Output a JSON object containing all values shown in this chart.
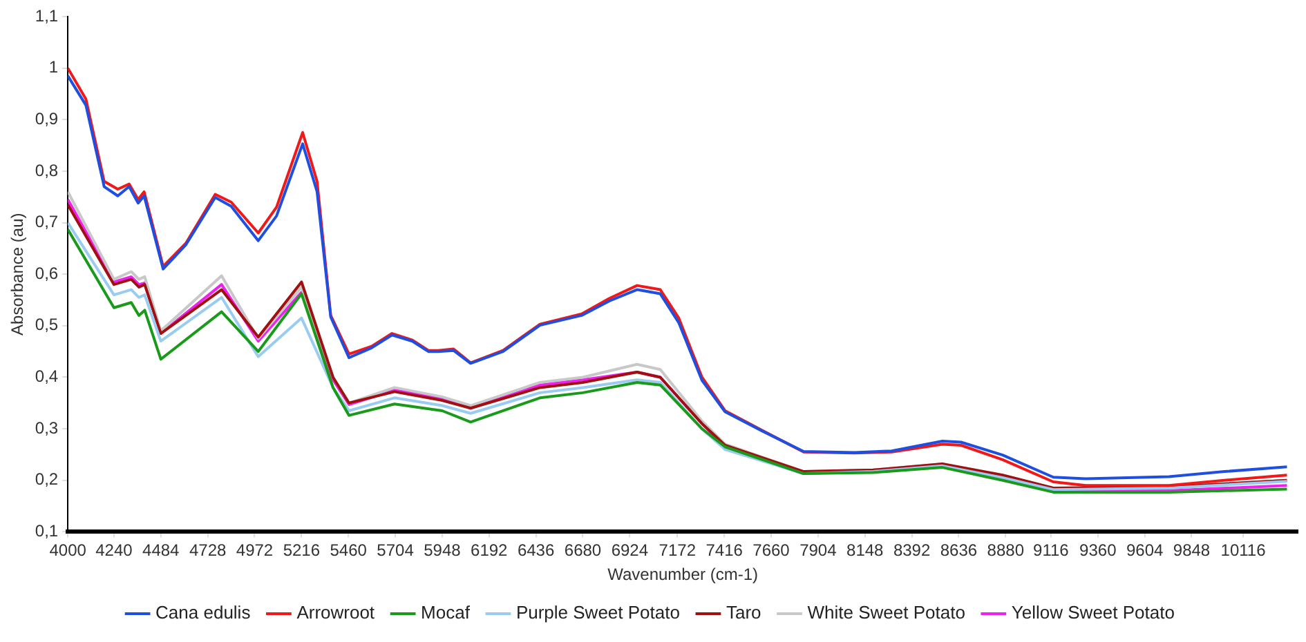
{
  "chart_data": {
    "type": "line",
    "xlabel": "Wavenumber (cm-1)",
    "ylabel": "Absorbance (au)",
    "xlim": [
      4000,
      10400
    ],
    "ylim": [
      0.1,
      1.1
    ],
    "xticks": [
      4000,
      4240,
      4484,
      4728,
      4972,
      5216,
      5460,
      5704,
      5948,
      6192,
      6436,
      6680,
      6924,
      7172,
      7416,
      7660,
      7904,
      8148,
      8392,
      8636,
      8880,
      9116,
      9360,
      9604,
      9848,
      10116
    ],
    "yticks": [
      {
        "value": 0.1,
        "label": "0,1"
      },
      {
        "value": 0.2,
        "label": "0,2"
      },
      {
        "value": 0.3,
        "label": "0,3"
      },
      {
        "value": 0.4,
        "label": "0,4"
      },
      {
        "value": 0.5,
        "label": "0,5"
      },
      {
        "value": 0.6,
        "label": "0,6"
      },
      {
        "value": 0.7,
        "label": "0,7"
      },
      {
        "value": 0.8,
        "label": "0,8"
      },
      {
        "value": 0.9,
        "label": "0,9"
      },
      {
        "value": 1,
        "label": "1"
      },
      {
        "value": 1.1,
        "label": "1,1"
      }
    ],
    "grid": false,
    "legend": "bottom",
    "marker": "none",
    "line_style": "solid",
    "series": [
      {
        "name": "Cana edulis",
        "color": "#1f4fe0",
        "x": [
          4000,
          4094,
          4189,
          4260,
          4319,
          4366,
          4397,
          4496,
          4614,
          4767,
          4850,
          4991,
          5086,
          5222,
          5297,
          5368,
          5463,
          5581,
          5687,
          5793,
          5876,
          5928,
          6007,
          6096,
          6265,
          6457,
          6674,
          6818,
          6962,
          7083,
          7179,
          7300,
          7420,
          7612,
          7829,
          8094,
          8287,
          8551,
          8648,
          8864,
          9128,
          9297,
          9730,
          10019,
          10344
        ],
        "values": [
          0.985,
          0.928,
          0.77,
          0.752,
          0.77,
          0.738,
          0.752,
          0.61,
          0.657,
          0.749,
          0.732,
          0.665,
          0.713,
          0.853,
          0.76,
          0.517,
          0.438,
          0.457,
          0.482,
          0.47,
          0.45,
          0.45,
          0.452,
          0.427,
          0.45,
          0.501,
          0.52,
          0.548,
          0.57,
          0.562,
          0.506,
          0.394,
          0.333,
          0.296,
          0.256,
          0.254,
          0.257,
          0.276,
          0.274,
          0.249,
          0.206,
          0.203,
          0.207,
          0.217,
          0.226
        ]
      },
      {
        "name": "Arrowroot",
        "color": "#f01818",
        "x": [
          4000,
          4094,
          4189,
          4260,
          4319,
          4366,
          4397,
          4496,
          4614,
          4767,
          4850,
          4991,
          5086,
          5222,
          5297,
          5368,
          5463,
          5581,
          5687,
          5793,
          5876,
          5928,
          6007,
          6096,
          6265,
          6457,
          6674,
          6818,
          6962,
          7083,
          7179,
          7300,
          7420,
          7612,
          7829,
          8094,
          8287,
          8551,
          8648,
          8864,
          9128,
          9297,
          9730,
          10019,
          10344
        ],
        "values": [
          1.0,
          0.94,
          0.78,
          0.765,
          0.775,
          0.745,
          0.76,
          0.615,
          0.66,
          0.755,
          0.74,
          0.68,
          0.73,
          0.875,
          0.78,
          0.52,
          0.445,
          0.46,
          0.485,
          0.472,
          0.452,
          0.452,
          0.455,
          0.428,
          0.452,
          0.503,
          0.523,
          0.553,
          0.578,
          0.57,
          0.515,
          0.4,
          0.335,
          0.297,
          0.255,
          0.253,
          0.255,
          0.27,
          0.268,
          0.24,
          0.197,
          0.19,
          0.19,
          0.2,
          0.21
        ]
      },
      {
        "name": "Mocaf",
        "color": "#1a9a1a",
        "x": [
          4000,
          4240,
          4330,
          4370,
          4400,
          4484,
          4800,
          4991,
          5216,
          5380,
          5463,
          5700,
          5948,
          6096,
          6457,
          6680,
          6962,
          7083,
          7300,
          7420,
          7829,
          8190,
          8551,
          8864,
          9128,
          9730,
          10344
        ],
        "values": [
          0.687,
          0.535,
          0.545,
          0.52,
          0.53,
          0.435,
          0.527,
          0.45,
          0.562,
          0.38,
          0.326,
          0.348,
          0.335,
          0.313,
          0.36,
          0.37,
          0.39,
          0.385,
          0.3,
          0.265,
          0.213,
          0.215,
          0.225,
          0.2,
          0.177,
          0.177,
          0.183
        ]
      },
      {
        "name": "Purple Sweet Potato",
        "color": "#99ccf0",
        "x": [
          4000,
          4240,
          4330,
          4370,
          4400,
          4484,
          4800,
          4991,
          5216,
          5380,
          5463,
          5700,
          5948,
          6096,
          6457,
          6680,
          6962,
          7083,
          7300,
          7420,
          7829,
          8190,
          8551,
          8864,
          9128,
          9730,
          10344
        ],
        "values": [
          0.7,
          0.56,
          0.57,
          0.555,
          0.56,
          0.47,
          0.555,
          0.44,
          0.515,
          0.38,
          0.335,
          0.36,
          0.345,
          0.33,
          0.37,
          0.38,
          0.395,
          0.39,
          0.3,
          0.26,
          0.213,
          0.217,
          0.228,
          0.205,
          0.182,
          0.185,
          0.198
        ]
      },
      {
        "name": "Taro",
        "color": "#a01010",
        "x": [
          4000,
          4240,
          4330,
          4370,
          4400,
          4484,
          4800,
          4991,
          5216,
          5380,
          5463,
          5700,
          5948,
          6096,
          6457,
          6680,
          6962,
          7083,
          7300,
          7420,
          7829,
          8190,
          8551,
          8864,
          9128,
          9730,
          10344
        ],
        "values": [
          0.735,
          0.58,
          0.59,
          0.575,
          0.58,
          0.485,
          0.57,
          0.478,
          0.585,
          0.4,
          0.35,
          0.372,
          0.355,
          0.34,
          0.38,
          0.39,
          0.41,
          0.4,
          0.31,
          0.268,
          0.217,
          0.22,
          0.232,
          0.21,
          0.185,
          0.187,
          0.2
        ]
      },
      {
        "name": "White Sweet Potato",
        "color": "#c8c8c8",
        "x": [
          4000,
          4240,
          4330,
          4370,
          4400,
          4484,
          4800,
          4991,
          5216,
          5380,
          5463,
          5700,
          5948,
          6096,
          6457,
          6680,
          6962,
          7083,
          7300,
          7420,
          7829,
          8190,
          8551,
          8864,
          9128,
          9730,
          10344
        ],
        "values": [
          0.76,
          0.59,
          0.605,
          0.59,
          0.595,
          0.49,
          0.597,
          0.475,
          0.575,
          0.4,
          0.35,
          0.38,
          0.362,
          0.345,
          0.39,
          0.4,
          0.425,
          0.415,
          0.315,
          0.27,
          0.217,
          0.22,
          0.232,
          0.21,
          0.185,
          0.188,
          0.2
        ]
      },
      {
        "name": "Yellow Sweet Potato",
        "color": "#f020f0",
        "x": [
          4000,
          4240,
          4330,
          4370,
          4400,
          4484,
          4800,
          4991,
          5216,
          5380,
          5463,
          5700,
          5948,
          6096,
          6457,
          6680,
          6962,
          7083,
          7300,
          7420,
          7829,
          8190,
          8551,
          8864,
          9128,
          9730,
          10344
        ],
        "values": [
          0.745,
          0.585,
          0.595,
          0.58,
          0.583,
          0.485,
          0.58,
          0.47,
          0.565,
          0.395,
          0.347,
          0.375,
          0.36,
          0.34,
          0.385,
          0.395,
          0.41,
          0.4,
          0.31,
          0.265,
          0.213,
          0.218,
          0.23,
          0.205,
          0.18,
          0.18,
          0.19
        ]
      }
    ]
  }
}
